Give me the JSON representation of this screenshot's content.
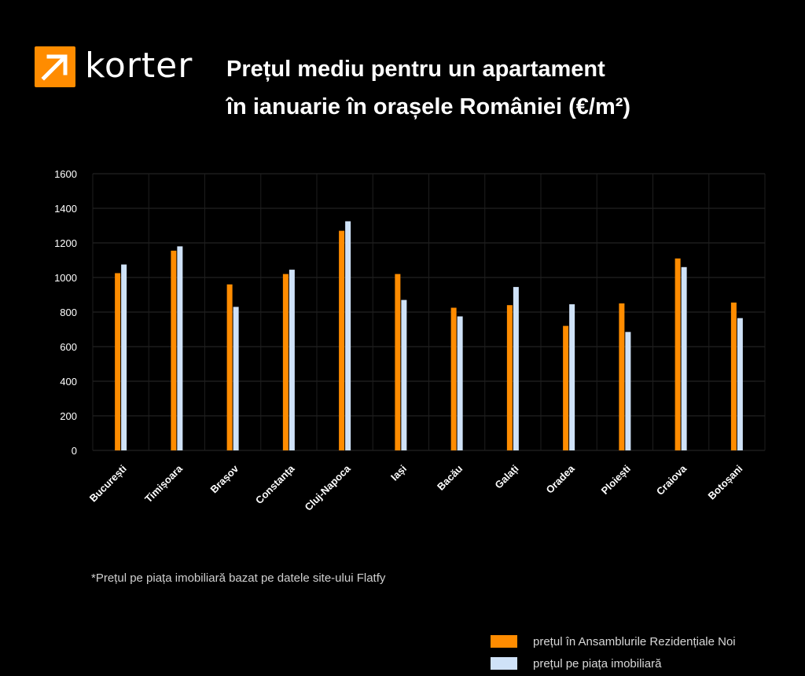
{
  "brand": {
    "name": "korter",
    "icon": "arrow-up-right-icon",
    "color": "#ff8c00"
  },
  "header": {
    "title_line1": "Prețul mediu pentru un apartament",
    "title_line2": "în ianuarie în orașele României (€/m²)"
  },
  "footnote": "*Prețul pe piața imobiliară bazat pe datele site-ului Flatfy",
  "chart_data": {
    "type": "bar",
    "title": "Prețul mediu pentru un apartament în ianuarie în orașele României (€/m²)",
    "categories": [
      "București",
      "Timișoara",
      "Brașov",
      "Constanța",
      "Cluj-Napoca",
      "Iași",
      "Bacău",
      "Galați",
      "Oradea",
      "Ploiești",
      "Craiova",
      "Botoșani"
    ],
    "series": [
      {
        "name": "prețul în Ansamblurile Rezidențiale Noi",
        "color": "#ff8c00",
        "values": [
          1025,
          1155,
          960,
          1020,
          1270,
          1020,
          825,
          840,
          720,
          850,
          1110,
          855
        ]
      },
      {
        "name": "prețul pe piața imobiliară",
        "color": "#cfe2f8",
        "values": [
          1075,
          1180,
          830,
          1045,
          1325,
          870,
          775,
          945,
          845,
          685,
          1060,
          765
        ]
      }
    ],
    "yticks": [
      "0",
      "200",
      "400",
      "600",
      "800",
      "1000",
      "1200",
      "1400",
      "1600"
    ],
    "ylim": [
      0,
      1600
    ],
    "xlabel": "",
    "ylabel": "",
    "grid": true,
    "legend": "bottom-right"
  }
}
